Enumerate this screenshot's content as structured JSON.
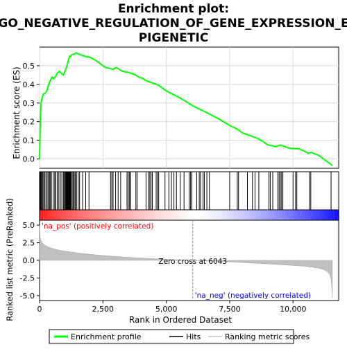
{
  "chart_data": {
    "type": "line",
    "title_lines": [
      "Enrichment plot:",
      "GO_NEGATIVE_REGULATION_OF_GENE_EXPRESSION_E",
      "PIGENETIC"
    ],
    "top_panel": {
      "ylabel": "Enrichment score (ES)",
      "ylim": [
        -0.05,
        0.6
      ],
      "yticks": [
        0.0,
        0.1,
        0.2,
        0.3,
        0.4,
        0.5
      ],
      "ytick_labels": [
        "0.0",
        "0.1",
        "0.2",
        "0.3",
        "0.4",
        "0.5"
      ],
      "grid": true,
      "es_curve": {
        "x": [
          0,
          30,
          60,
          100,
          160,
          220,
          300,
          360,
          420,
          500,
          560,
          620,
          700,
          780,
          860,
          940,
          1000,
          1060,
          1100,
          1140,
          1180,
          1220,
          1280,
          1340,
          1400,
          1450,
          1500,
          1600,
          1800,
          2000,
          2200,
          2400,
          2600,
          2800,
          2900,
          3000,
          3100,
          3200,
          3300,
          3400,
          3500,
          3600,
          3700,
          3800,
          3900,
          4000,
          4100,
          4200,
          4300,
          4400,
          4500,
          4600,
          4700,
          4800,
          5000,
          5500,
          6000,
          6043,
          6500,
          7000,
          7500,
          7800,
          7900,
          8000,
          8200,
          8400,
          8600,
          8800,
          9000,
          9200,
          9300,
          9400,
          9500,
          9600,
          9800,
          10000,
          10200,
          10400,
          10600,
          10700,
          10800,
          11000,
          11200,
          11400,
          11550
        ],
        "y": [
          0.0,
          0.22,
          0.3,
          0.33,
          0.35,
          0.35,
          0.37,
          0.4,
          0.42,
          0.44,
          0.43,
          0.44,
          0.46,
          0.47,
          0.46,
          0.45,
          0.47,
          0.49,
          0.51,
          0.53,
          0.55,
          0.55,
          0.56,
          0.56,
          0.565,
          0.57,
          0.565,
          0.56,
          0.55,
          0.545,
          0.53,
          0.51,
          0.49,
          0.485,
          0.48,
          0.49,
          0.485,
          0.475,
          0.47,
          0.465,
          0.465,
          0.46,
          0.455,
          0.45,
          0.44,
          0.435,
          0.43,
          0.42,
          0.415,
          0.41,
          0.405,
          0.4,
          0.395,
          0.385,
          0.365,
          0.33,
          0.29,
          0.285,
          0.255,
          0.22,
          0.18,
          0.16,
          0.15,
          0.14,
          0.13,
          0.12,
          0.11,
          0.095,
          0.075,
          0.07,
          0.065,
          0.07,
          0.075,
          0.07,
          0.06,
          0.055,
          0.055,
          0.045,
          0.03,
          0.035,
          0.03,
          0.02,
          0.0,
          -0.02,
          -0.035
        ]
      }
    },
    "hits_x": [
      10,
      25,
      40,
      60,
      80,
      120,
      160,
      200,
      250,
      300,
      350,
      390,
      420,
      470,
      540,
      600,
      640,
      700,
      760,
      820,
      880,
      940,
      980,
      1010,
      1040,
      1060,
      1080,
      1100,
      1120,
      1140,
      1160,
      1180,
      1200,
      1220,
      1250,
      1290,
      1330,
      1370,
      1410,
      1460,
      1520,
      1580,
      1700,
      1820,
      1950,
      2800,
      2850,
      2900,
      3000,
      3100,
      3200,
      3450,
      3500,
      3550,
      3600,
      3800,
      3850,
      4200,
      4300,
      4350,
      4400,
      4450,
      4600,
      4650,
      4700,
      4950,
      5100,
      5200,
      5300,
      5400,
      5550,
      5700,
      5900,
      5960,
      6010,
      6200,
      6300,
      6350,
      6450,
      6500,
      6600,
      6700,
      7500,
      7800,
      7850,
      8200,
      8400,
      8500,
      8650,
      9050,
      9100,
      9200,
      9400,
      9450,
      9500,
      9550,
      9600,
      10000,
      10100,
      10150,
      10650,
      10700,
      11500
    ],
    "rank_panel": {
      "ylabel": "Ranked list metric (PreRanked)",
      "ylim": [
        -5.7,
        5.7
      ],
      "yticks": [
        -5.0,
        -2.5,
        0.0,
        2.5,
        5.0
      ],
      "ytick_labels": [
        "-5.0",
        "-2.5",
        "0.0",
        "2.5",
        "5.0"
      ],
      "xlabel": "Rank in Ordered Dataset",
      "xlim": [
        0,
        11800
      ],
      "xticks": [
        0,
        2500,
        5000,
        7500,
        10000
      ],
      "xtick_labels": [
        "0",
        "2,500",
        "5,000",
        "7,500",
        "10,000"
      ],
      "metric_curve": {
        "x": [
          0,
          20,
          50,
          100,
          200,
          400,
          700,
          1000,
          1500,
          2000,
          3000,
          4000,
          5000,
          6043,
          7000,
          8000,
          9000,
          10000,
          10500,
          11000,
          11200,
          11350,
          11450,
          11500,
          11530,
          11550
        ],
        "y": [
          5.0,
          3.3,
          2.9,
          2.5,
          2.15,
          1.8,
          1.5,
          1.3,
          1.05,
          0.85,
          0.55,
          0.32,
          0.15,
          0.0,
          -0.15,
          -0.3,
          -0.5,
          -0.72,
          -0.85,
          -1.1,
          -1.3,
          -1.6,
          -2.0,
          -2.6,
          -3.5,
          -5.4
        ]
      },
      "pos_label": "'na_pos' (positively correlated)",
      "neg_label": "'na_neg' (negatively correlated)",
      "zero_cross_label": "Zero cross at 6043",
      "zero_cross_x": 6043
    },
    "legend": {
      "items": [
        {
          "label": "Enrichment profile",
          "color": "#00ff00"
        },
        {
          "label": "Hits",
          "color": "#000000"
        },
        {
          "label": "Ranking metric scores",
          "color": "#c0c0c0"
        }
      ]
    },
    "colors": {
      "es_line": "#00ff00",
      "pos_label": "#ff0000",
      "neg_label": "#0000ff",
      "metric_fill": "#c0c0c0"
    }
  }
}
